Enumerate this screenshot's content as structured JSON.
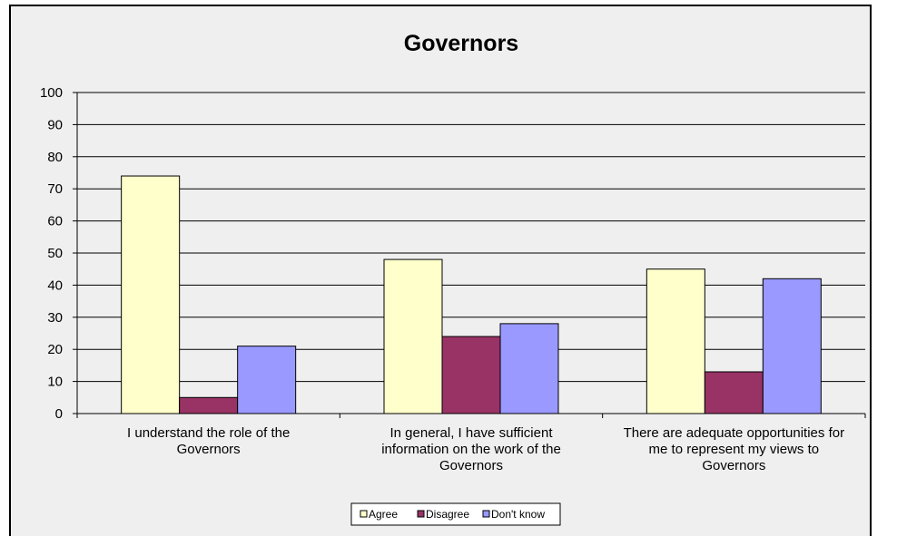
{
  "chart_data": {
    "type": "bar",
    "title": "Governors",
    "categories": [
      [
        "I understand the role of the",
        "Governors"
      ],
      [
        "In general, I have sufficient",
        "information on the work of the",
        "Governors"
      ],
      [
        "There are adequate opportunities for",
        "me to represent my views to",
        "Governors"
      ]
    ],
    "series": [
      {
        "name": "Agree",
        "color": "#ffffcc",
        "values": [
          74,
          48,
          45
        ]
      },
      {
        "name": "Disagree",
        "color": "#993366",
        "values": [
          5,
          24,
          13
        ]
      },
      {
        "name": "Don't know",
        "color": "#9999ff",
        "values": [
          21,
          28,
          42
        ]
      }
    ],
    "ylim": [
      0,
      100
    ],
    "yticks": [
      0,
      10,
      20,
      30,
      40,
      50,
      60,
      70,
      80,
      90,
      100
    ],
    "grid": true,
    "legend": "bottom"
  }
}
